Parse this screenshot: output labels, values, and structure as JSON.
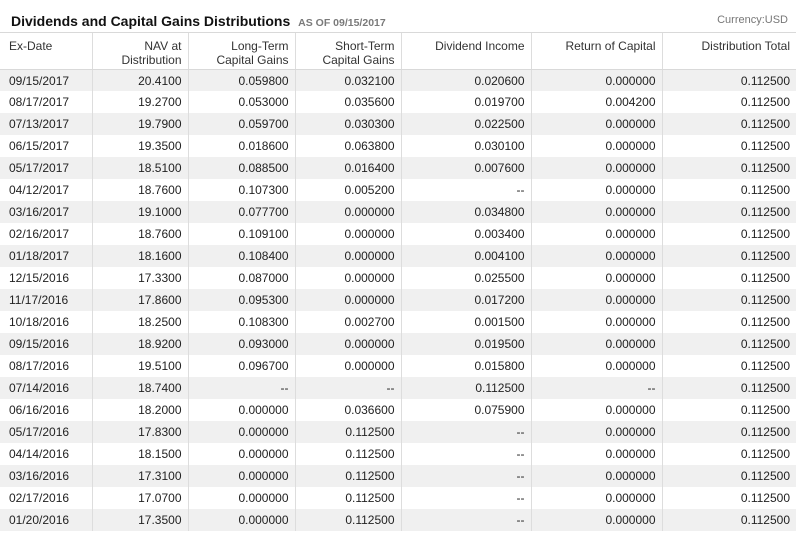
{
  "header": {
    "title": "Dividends and Capital Gains Distributions",
    "as_of": "AS OF 09/15/2017",
    "currency": "Currency:USD"
  },
  "columns": [
    {
      "line1": "Ex-Date",
      "line2": ""
    },
    {
      "line1": "NAV at",
      "line2": "Distribution"
    },
    {
      "line1": "Long-Term",
      "line2": "Capital Gains"
    },
    {
      "line1": "Short-Term",
      "line2": "Capital Gains"
    },
    {
      "line1": "Dividend Income",
      "line2": ""
    },
    {
      "line1": "Return of Capital",
      "line2": ""
    },
    {
      "line1": "Distribution Total",
      "line2": ""
    }
  ],
  "rows": [
    [
      "09/15/2017",
      "20.4100",
      "0.059800",
      "0.032100",
      "0.020600",
      "0.000000",
      "0.112500"
    ],
    [
      "08/17/2017",
      "19.2700",
      "0.053000",
      "0.035600",
      "0.019700",
      "0.004200",
      "0.112500"
    ],
    [
      "07/13/2017",
      "19.7900",
      "0.059700",
      "0.030300",
      "0.022500",
      "0.000000",
      "0.112500"
    ],
    [
      "06/15/2017",
      "19.3500",
      "0.018600",
      "0.063800",
      "0.030100",
      "0.000000",
      "0.112500"
    ],
    [
      "05/17/2017",
      "18.5100",
      "0.088500",
      "0.016400",
      "0.007600",
      "0.000000",
      "0.112500"
    ],
    [
      "04/12/2017",
      "18.7600",
      "0.107300",
      "0.005200",
      "--",
      "0.000000",
      "0.112500"
    ],
    [
      "03/16/2017",
      "19.1000",
      "0.077700",
      "0.000000",
      "0.034800",
      "0.000000",
      "0.112500"
    ],
    [
      "02/16/2017",
      "18.7600",
      "0.109100",
      "0.000000",
      "0.003400",
      "0.000000",
      "0.112500"
    ],
    [
      "01/18/2017",
      "18.1600",
      "0.108400",
      "0.000000",
      "0.004100",
      "0.000000",
      "0.112500"
    ],
    [
      "12/15/2016",
      "17.3300",
      "0.087000",
      "0.000000",
      "0.025500",
      "0.000000",
      "0.112500"
    ],
    [
      "11/17/2016",
      "17.8600",
      "0.095300",
      "0.000000",
      "0.017200",
      "0.000000",
      "0.112500"
    ],
    [
      "10/18/2016",
      "18.2500",
      "0.108300",
      "0.002700",
      "0.001500",
      "0.000000",
      "0.112500"
    ],
    [
      "09/15/2016",
      "18.9200",
      "0.093000",
      "0.000000",
      "0.019500",
      "0.000000",
      "0.112500"
    ],
    [
      "08/17/2016",
      "19.5100",
      "0.096700",
      "0.000000",
      "0.015800",
      "0.000000",
      "0.112500"
    ],
    [
      "07/14/2016",
      "18.7400",
      "--",
      "--",
      "0.112500",
      "--",
      "0.112500"
    ],
    [
      "06/16/2016",
      "18.2000",
      "0.000000",
      "0.036600",
      "0.075900",
      "0.000000",
      "0.112500"
    ],
    [
      "05/17/2016",
      "17.8300",
      "0.000000",
      "0.112500",
      "--",
      "0.000000",
      "0.112500"
    ],
    [
      "04/14/2016",
      "18.1500",
      "0.000000",
      "0.112500",
      "--",
      "0.000000",
      "0.112500"
    ],
    [
      "03/16/2016",
      "17.3100",
      "0.000000",
      "0.112500",
      "--",
      "0.000000",
      "0.112500"
    ],
    [
      "02/17/2016",
      "17.0700",
      "0.000000",
      "0.112500",
      "--",
      "0.000000",
      "0.112500"
    ],
    [
      "01/20/2016",
      "17.3500",
      "0.000000",
      "0.112500",
      "--",
      "0.000000",
      "0.112500"
    ]
  ]
}
